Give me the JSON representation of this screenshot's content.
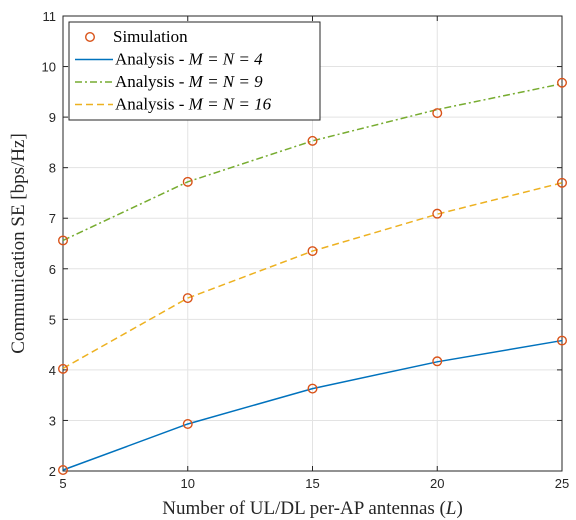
{
  "chart_data": {
    "type": "line",
    "xlabel_text": "Number of UL/DL per-AP antennas (",
    "xlabel_var": "L",
    "xlabel_close": ")",
    "ylabel": "Communication SE [bps/Hz]",
    "xlim": [
      5,
      25
    ],
    "ylim": [
      2,
      11
    ],
    "xticks": [
      5,
      10,
      15,
      20,
      25
    ],
    "yticks": [
      2,
      3,
      4,
      5,
      6,
      7,
      8,
      9,
      10,
      11
    ],
    "grid": true,
    "legend_position": "top-left",
    "x": [
      5,
      10,
      15,
      20,
      25
    ],
    "series": [
      {
        "name": "Analysis - M = N = 4",
        "label_text": "Analysis - ",
        "label_math": "M = N = 4",
        "style": "solid",
        "color": "#0072BD",
        "values": [
          2.02,
          2.93,
          3.63,
          4.16,
          4.58
        ]
      },
      {
        "name": "Analysis - M = N = 9",
        "label_text": "Analysis - ",
        "label_math": "M = N = 9",
        "style": "dashdot",
        "color": "#77AC30",
        "values": [
          6.56,
          7.72,
          8.53,
          9.15,
          9.66
        ]
      },
      {
        "name": "Analysis - M = N = 16",
        "label_text": "Analysis - ",
        "label_math": "M = N = 16",
        "style": "dashed",
        "color": "#EDB120",
        "values": [
          4.03,
          5.42,
          6.35,
          7.08,
          7.7
        ]
      }
    ],
    "simulation": {
      "name": "Simulation",
      "marker": "circle",
      "color": "#D95319",
      "points": [
        [
          5,
          2.02
        ],
        [
          10,
          2.93
        ],
        [
          15,
          3.63
        ],
        [
          20,
          4.17
        ],
        [
          25,
          4.58
        ],
        [
          5,
          6.56
        ],
        [
          10,
          7.72
        ],
        [
          15,
          8.53
        ],
        [
          20,
          9.08
        ],
        [
          25,
          9.68
        ],
        [
          5,
          4.02
        ],
        [
          10,
          5.42
        ],
        [
          15,
          6.35
        ],
        [
          20,
          7.09
        ],
        [
          25,
          7.7
        ]
      ]
    }
  }
}
